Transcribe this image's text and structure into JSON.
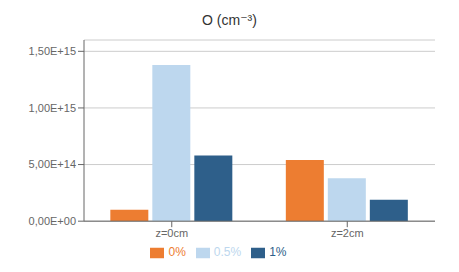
{
  "chart_data": {
    "type": "bar",
    "title": "O (cm⁻³)",
    "categories": [
      "z=0cm",
      "z=2cm"
    ],
    "series": [
      {
        "name": "0%",
        "color": "#ED7D31",
        "values": [
          100000000000000.0,
          540000000000000.0
        ]
      },
      {
        "name": "0.5%",
        "color": "#BDD7EE",
        "values": [
          1380000000000000.0,
          380000000000000.0
        ]
      },
      {
        "name": "1%",
        "color": "#2E5F8A",
        "values": [
          580000000000000.0,
          190000000000000.0
        ]
      }
    ],
    "ylim": [
      0,
      1600000000000000.0
    ],
    "yticks": [
      {
        "value": 0,
        "label": "0,00E+00"
      },
      {
        "value": 500000000000000.0,
        "label": "5,00E+14"
      },
      {
        "value": 1000000000000000.0,
        "label": "1,00E+15"
      },
      {
        "value": 1500000000000000.0,
        "label": "1,50E+15"
      }
    ],
    "grid": true,
    "legend": "bottom"
  }
}
